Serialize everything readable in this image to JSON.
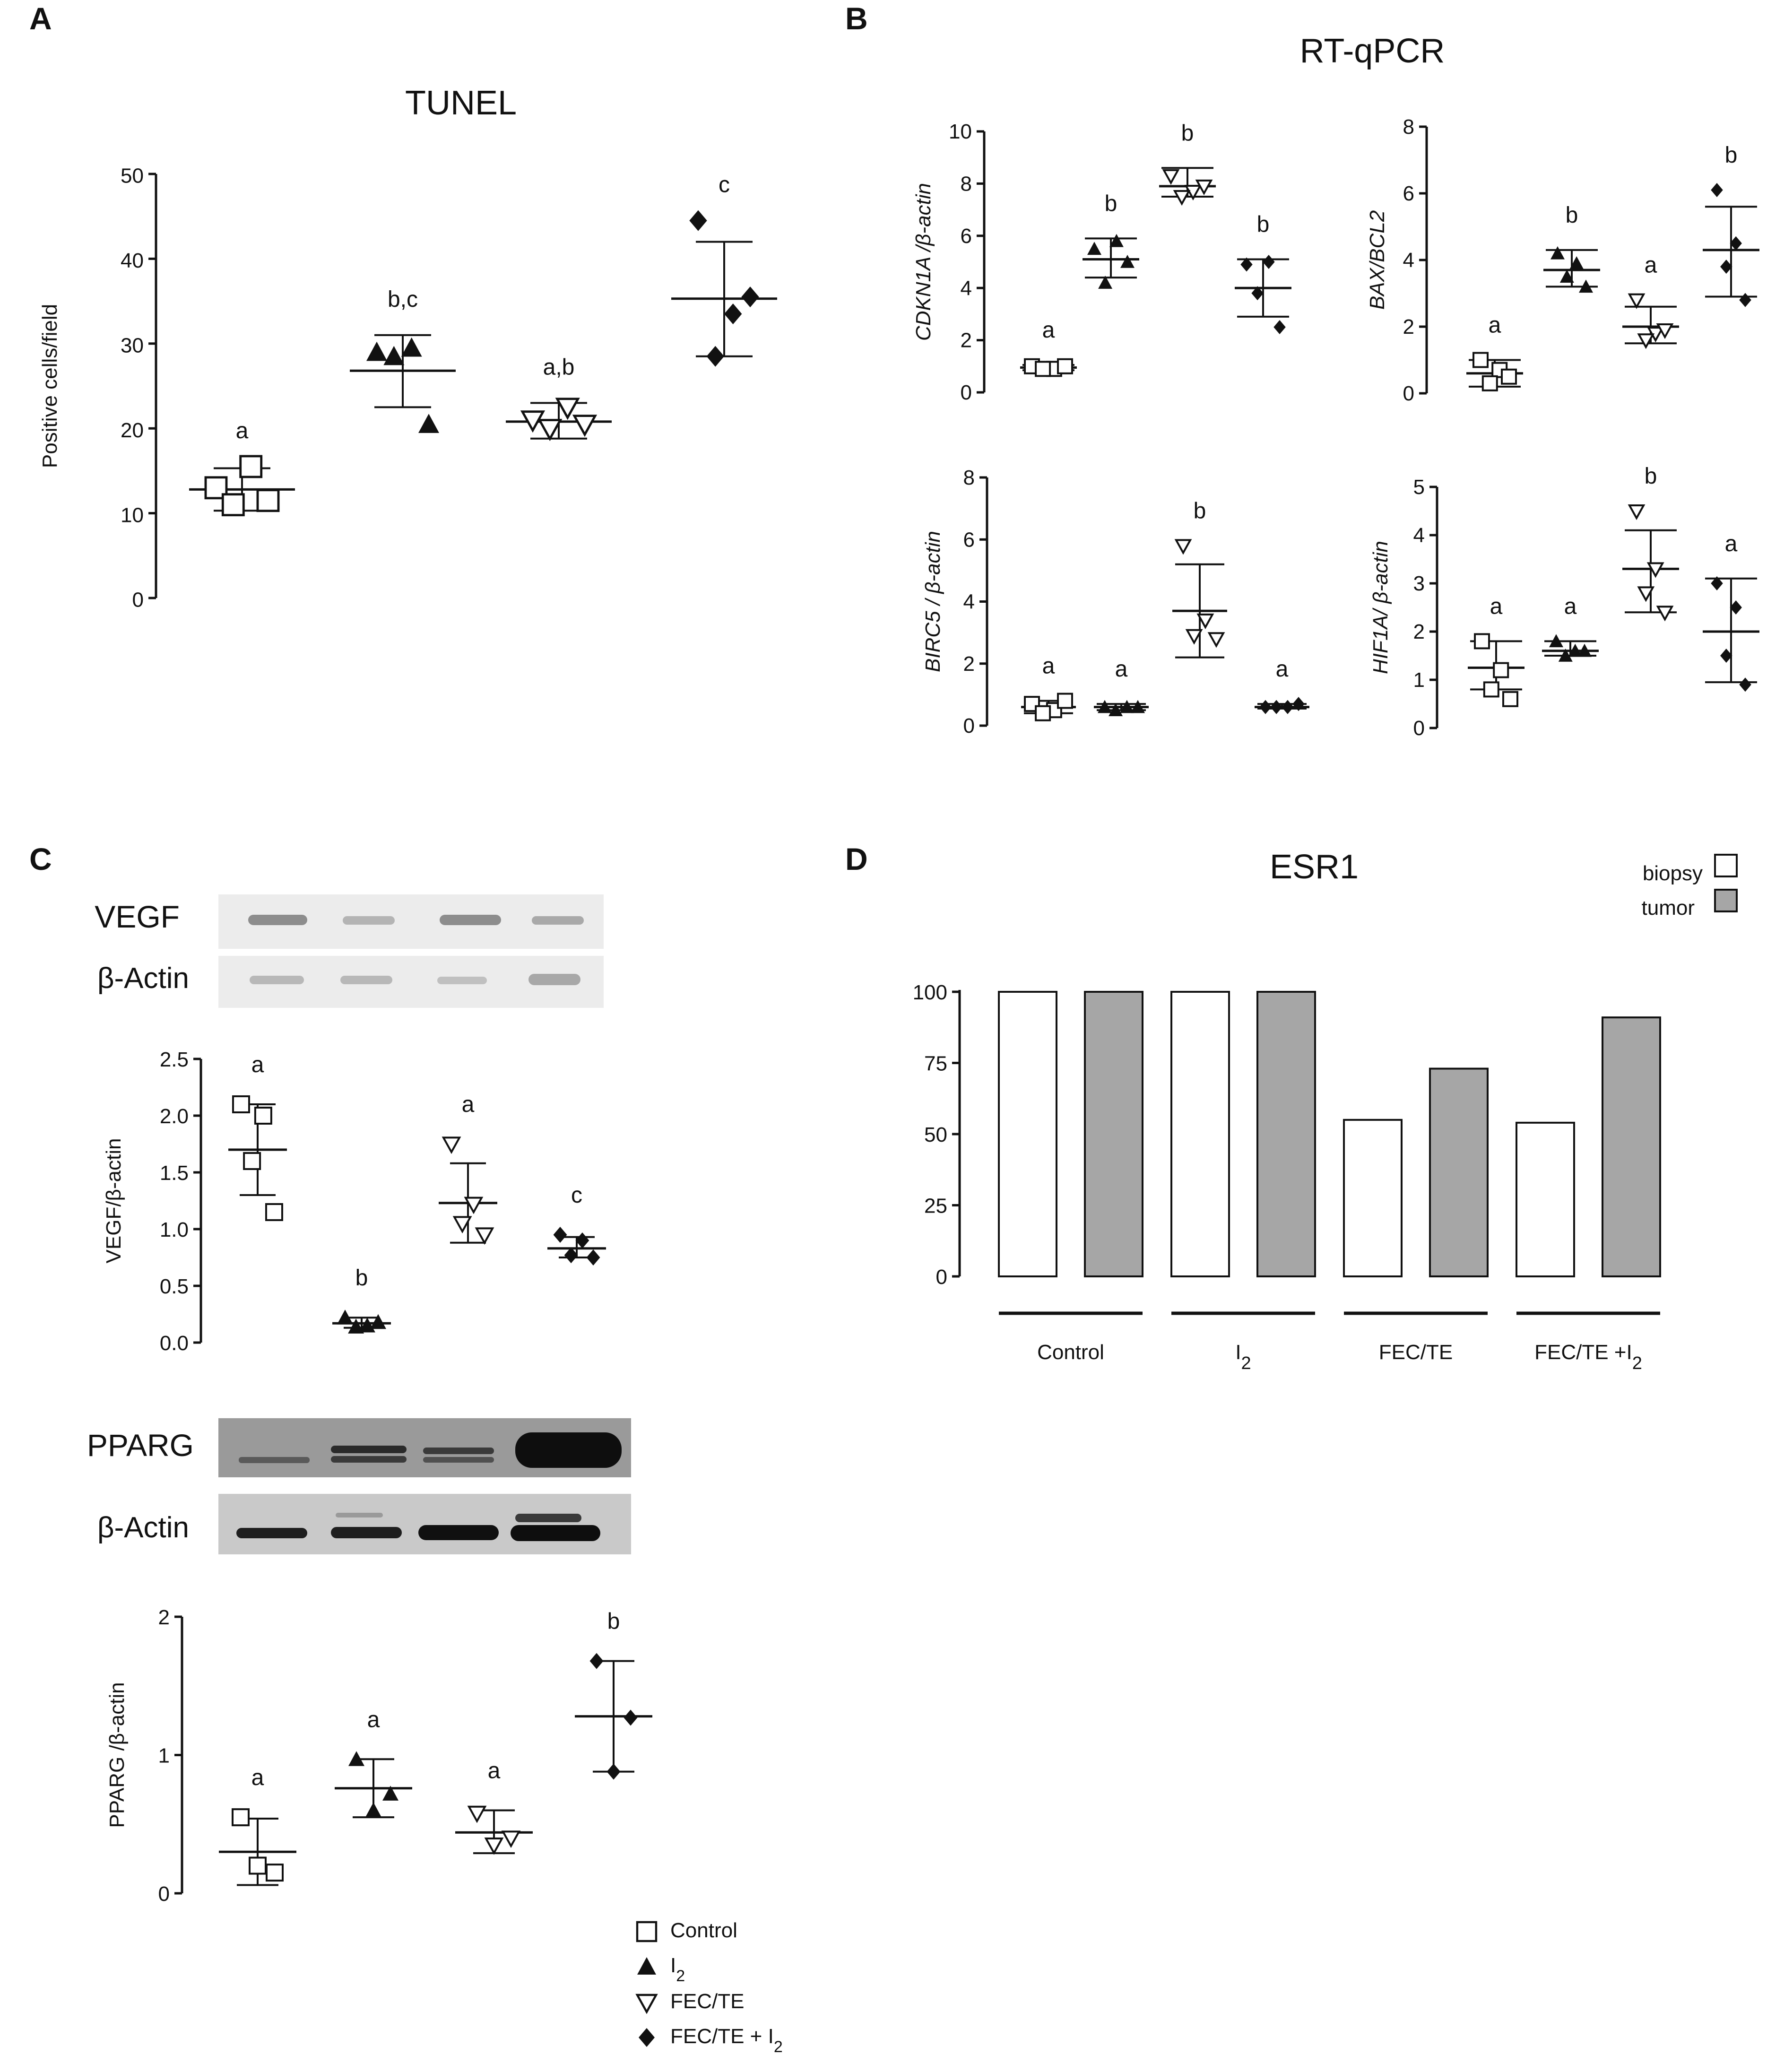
{
  "panels": {
    "A": {
      "letter": "A"
    },
    "B": {
      "letter": "B",
      "title": "RT-qPCR"
    },
    "C": {
      "letter": "C"
    },
    "D": {
      "letter": "D"
    }
  },
  "groups": [
    "Control",
    "I2",
    "FEC/TE",
    "FEC/TE + I2"
  ],
  "colors": {
    "axis": "#111111",
    "tumor_fill": "#a6a6a6",
    "biopsy_fill": "#ffffff"
  },
  "legend": {
    "items": [
      {
        "label": "Control",
        "marker": "square-open"
      },
      {
        "label": "I",
        "sub": "2",
        "marker": "triangle-filled"
      },
      {
        "label": "FEC/TE",
        "marker": "triangle-down-open"
      },
      {
        "label": "FEC/TE + I",
        "sub": "2",
        "marker": "diamond-filled"
      }
    ]
  },
  "blots": {
    "vegf": {
      "label": "VEGF"
    },
    "vegf_actin": {
      "label": "β-Actin"
    },
    "pparg": {
      "label": "PPARG"
    },
    "pparg_actin": {
      "label": "β-Actin"
    }
  },
  "chart_data": [
    {
      "id": "tunel",
      "type": "scatter",
      "title": "TUNEL",
      "ylabel": "Positive cells/field",
      "ylim": [
        0,
        50
      ],
      "yticks": [
        "0",
        "10",
        "20",
        "30",
        "40",
        "50"
      ],
      "series": [
        {
          "group": "Control",
          "marker": "square-open",
          "values": [
            13,
            15.5,
            11,
            11.5
          ],
          "mean": 12.8,
          "sd_low": 10.3,
          "sd_high": 15.3,
          "sig": "a"
        },
        {
          "group": "I2",
          "marker": "triangle-filled",
          "values": [
            29,
            29.5,
            28.5,
            20.5
          ],
          "mean": 26.8,
          "sd_low": 22.5,
          "sd_high": 31,
          "sig": "b,c"
        },
        {
          "group": "FEC/TE",
          "marker": "triangle-down-open",
          "values": [
            21,
            22.5,
            20,
            20.5
          ],
          "mean": 20.8,
          "sd_low": 18.8,
          "sd_high": 23,
          "sig": "a,b"
        },
        {
          "group": "FEC/TE + I2",
          "marker": "diamond-filled",
          "values": [
            44.5,
            33.5,
            28.5,
            35.5
          ],
          "mean": 35.3,
          "sd_low": 28.5,
          "sd_high": 42,
          "sig": "c"
        }
      ]
    },
    {
      "id": "cdkn1a",
      "type": "scatter",
      "ylabel": "CDKN1A /β-actin",
      "ylim": [
        0,
        10
      ],
      "yticks": [
        "0",
        "2",
        "4",
        "6",
        "8",
        "10"
      ],
      "series": [
        {
          "group": "Control",
          "marker": "square-open",
          "values": [
            1.0,
            0.9,
            0.9,
            1.0
          ],
          "mean": 0.95,
          "sd_low": 0.85,
          "sd_high": 1.05,
          "sig": "a"
        },
        {
          "group": "I2",
          "marker": "triangle-filled",
          "values": [
            5.5,
            5.8,
            4.2,
            5.0
          ],
          "mean": 5.1,
          "sd_low": 4.4,
          "sd_high": 5.9,
          "sig": "b"
        },
        {
          "group": "FEC/TE",
          "marker": "triangle-down-open",
          "values": [
            8.3,
            7.7,
            7.5,
            7.9
          ],
          "mean": 7.9,
          "sd_low": 7.5,
          "sd_high": 8.6,
          "sig": "b"
        },
        {
          "group": "FEC/TE + I2",
          "marker": "diamond-filled",
          "values": [
            4.9,
            5.0,
            3.8,
            2.5
          ],
          "mean": 4.0,
          "sd_low": 2.9,
          "sd_high": 5.1,
          "sig": "b"
        }
      ]
    },
    {
      "id": "baxbcl2",
      "type": "scatter",
      "ylabel": "BAX/BCL2",
      "ylim": [
        0,
        8
      ],
      "yticks": [
        "0",
        "2",
        "4",
        "6",
        "8"
      ],
      "series": [
        {
          "group": "Control",
          "marker": "square-open",
          "values": [
            1.0,
            0.7,
            0.3,
            0.5
          ],
          "mean": 0.6,
          "sd_low": 0.2,
          "sd_high": 1.0,
          "sig": "a"
        },
        {
          "group": "I2",
          "marker": "triangle-filled",
          "values": [
            4.2,
            3.9,
            3.5,
            3.2
          ],
          "mean": 3.7,
          "sd_low": 3.2,
          "sd_high": 4.3,
          "sig": "b"
        },
        {
          "group": "FEC/TE",
          "marker": "triangle-down-open",
          "values": [
            2.8,
            1.8,
            1.6,
            1.9
          ],
          "mean": 2.0,
          "sd_low": 1.5,
          "sd_high": 2.6,
          "sig": "a"
        },
        {
          "group": "FEC/TE + I2",
          "marker": "diamond-filled",
          "values": [
            6.1,
            4.5,
            3.8,
            2.8
          ],
          "mean": 4.3,
          "sd_low": 2.9,
          "sd_high": 5.6,
          "sig": "b"
        }
      ]
    },
    {
      "id": "birc5",
      "type": "scatter",
      "ylabel": "BIRC5 / β-actin",
      "ylim": [
        0,
        8
      ],
      "yticks": [
        "0",
        "2",
        "4",
        "6",
        "8"
      ],
      "series": [
        {
          "group": "Control",
          "marker": "square-open",
          "values": [
            0.7,
            0.5,
            0.4,
            0.8
          ],
          "mean": 0.6,
          "sd_low": 0.4,
          "sd_high": 0.8,
          "sig": "a"
        },
        {
          "group": "I2",
          "marker": "triangle-filled",
          "values": [
            0.6,
            0.6,
            0.5,
            0.6
          ],
          "mean": 0.6,
          "sd_low": 0.5,
          "sd_high": 0.7,
          "sig": "a"
        },
        {
          "group": "FEC/TE",
          "marker": "triangle-down-open",
          "values": [
            5.8,
            3.4,
            2.9,
            2.8
          ],
          "mean": 3.7,
          "sd_low": 2.2,
          "sd_high": 5.2,
          "sig": "b"
        },
        {
          "group": "FEC/TE + I2",
          "marker": "diamond-filled",
          "values": [
            0.6,
            0.6,
            0.6,
            0.7
          ],
          "mean": 0.6,
          "sd_low": 0.55,
          "sd_high": 0.7,
          "sig": "a"
        }
      ]
    },
    {
      "id": "hif1a",
      "type": "scatter",
      "ylabel": "HIF1A/ β-actin",
      "ylim": [
        0,
        5
      ],
      "yticks": [
        "0",
        "1",
        "2",
        "3",
        "4",
        "5"
      ],
      "series": [
        {
          "group": "Control",
          "marker": "square-open",
          "values": [
            1.8,
            1.2,
            0.8,
            0.6
          ],
          "mean": 1.25,
          "sd_low": 0.8,
          "sd_high": 1.8,
          "sig": "a"
        },
        {
          "group": "I2",
          "marker": "triangle-filled",
          "values": [
            1.8,
            1.6,
            1.5,
            1.6
          ],
          "mean": 1.6,
          "sd_low": 1.5,
          "sd_high": 1.8,
          "sig": "a"
        },
        {
          "group": "FEC/TE",
          "marker": "triangle-down-open",
          "values": [
            4.5,
            3.3,
            2.8,
            2.4
          ],
          "mean": 3.3,
          "sd_low": 2.4,
          "sd_high": 4.1,
          "sig": "b"
        },
        {
          "group": "FEC/TE + I2",
          "marker": "diamond-filled",
          "values": [
            3.0,
            2.5,
            1.5,
            0.9
          ],
          "mean": 2.0,
          "sd_low": 0.95,
          "sd_high": 3.1,
          "sig": "a"
        }
      ]
    },
    {
      "id": "vegf",
      "type": "scatter",
      "ylabel": "VEGF/β-actin",
      "ylim": [
        0,
        2.5
      ],
      "yticks": [
        "0.0",
        "0.5",
        "1.0",
        "1.5",
        "2.0",
        "2.5"
      ],
      "series": [
        {
          "group": "Control",
          "marker": "square-open",
          "values": [
            2.1,
            2.0,
            1.6,
            1.15
          ],
          "mean": 1.7,
          "sd_low": 1.3,
          "sd_high": 2.1,
          "sig": "a"
        },
        {
          "group": "I2",
          "marker": "triangle-filled",
          "values": [
            0.22,
            0.15,
            0.14,
            0.18
          ],
          "mean": 0.17,
          "sd_low": 0.13,
          "sd_high": 0.22,
          "sig": "b"
        },
        {
          "group": "FEC/TE",
          "marker": "triangle-down-open",
          "values": [
            1.75,
            1.22,
            1.05,
            0.95
          ],
          "mean": 1.23,
          "sd_low": 0.88,
          "sd_high": 1.58,
          "sig": "a"
        },
        {
          "group": "FEC/TE + I2",
          "marker": "diamond-filled",
          "values": [
            0.95,
            0.9,
            0.77,
            0.75
          ],
          "mean": 0.83,
          "sd_low": 0.75,
          "sd_high": 0.93,
          "sig": "c"
        }
      ]
    },
    {
      "id": "pparg",
      "type": "scatter",
      "ylabel": "PPARG /β-actin",
      "ylim": [
        0,
        2
      ],
      "yticks": [
        "0",
        "1",
        "2"
      ],
      "series": [
        {
          "group": "Control",
          "marker": "square-open",
          "values": [
            0.55,
            0.15,
            0.2
          ],
          "mean": 0.3,
          "sd_low": 0.06,
          "sd_high": 0.54,
          "sig": "a"
        },
        {
          "group": "I2",
          "marker": "triangle-filled",
          "values": [
            0.97,
            0.72,
            0.6
          ],
          "mean": 0.76,
          "sd_low": 0.55,
          "sd_high": 0.97,
          "sig": "a"
        },
        {
          "group": "FEC/TE",
          "marker": "triangle-down-open",
          "values": [
            0.58,
            0.4,
            0.35
          ],
          "mean": 0.44,
          "sd_low": 0.29,
          "sd_high": 0.6,
          "sig": "a"
        },
        {
          "group": "FEC/TE + I2",
          "marker": "diamond-filled",
          "values": [
            1.68,
            1.27,
            0.88
          ],
          "mean": 1.28,
          "sd_low": 0.88,
          "sd_high": 1.68,
          "sig": "b"
        }
      ]
    },
    {
      "id": "esr1",
      "type": "bar",
      "title": "ESR1",
      "ylim": [
        0,
        100
      ],
      "yticks": [
        "0",
        "25",
        "50",
        "75",
        "100"
      ],
      "categories": [
        "Control",
        "I2",
        "FEC/TE",
        "FEC/TE +I2"
      ],
      "series": [
        {
          "name": "biopsy",
          "values": [
            100,
            100,
            55,
            54
          ]
        },
        {
          "name": "tumor",
          "values": [
            100,
            100,
            73,
            91
          ]
        }
      ],
      "legend": {
        "biopsy": "biopsy",
        "tumor": "tumor",
        "position": "top-right"
      }
    }
  ]
}
